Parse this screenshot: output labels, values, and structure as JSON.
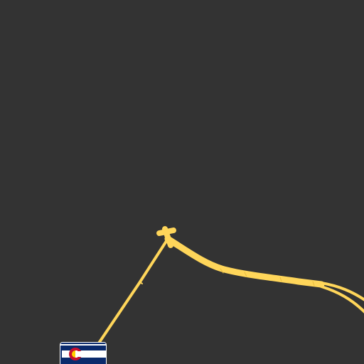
{
  "map": {
    "background_color": "#333333",
    "road_color": "#ffd65a",
    "road_casing_color": "#e8bd3f",
    "features": [
      {
        "name": "highway-road",
        "kind": "road"
      },
      {
        "name": "state-route-shield",
        "kind": "shield",
        "icon": "colorado-flag-icon"
      }
    ]
  }
}
